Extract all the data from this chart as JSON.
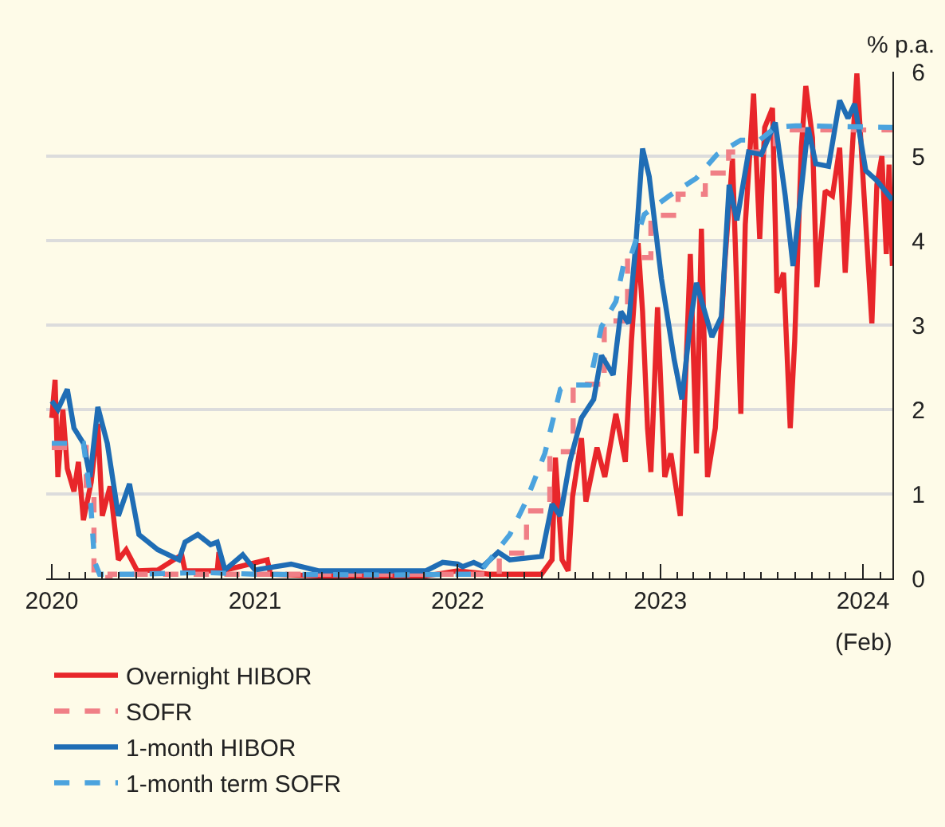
{
  "chart_data": {
    "type": "line",
    "ylabel": "% p.a.",
    "xlim": [
      "2019-12-22",
      "2024-02-23"
    ],
    "xticks": [
      {
        "value": "2020-01-01",
        "label": "2020"
      },
      {
        "value": "2021-01-01",
        "label": "2021"
      },
      {
        "value": "2022-01-01",
        "label": "2022"
      },
      {
        "value": "2023-01-01",
        "label": "2023"
      },
      {
        "value": "2024-01-01",
        "label": "2024"
      }
    ],
    "annotations": [
      "(Feb)"
    ],
    "ylim": [
      0,
      6
    ],
    "yticks": [
      0,
      1,
      2,
      3,
      4,
      5,
      6
    ],
    "grid": "y",
    "legend": "bottom",
    "line_style": "solid",
    "series": [
      {
        "name": "Overnight HIBOR",
        "color": "#e8262a",
        "x": [
          "2020-01-01",
          "2020-01-07",
          "2020-01-12",
          "2020-01-21",
          "2020-01-29",
          "2020-02-10",
          "2020-02-18",
          "2020-02-27",
          "2020-03-12",
          "2020-03-24",
          "2020-04-01",
          "2020-04-15",
          "2020-04-30",
          "2020-05-14",
          "2020-06-03",
          "2020-07-10",
          "2020-08-22",
          "2020-08-28",
          "2020-10-25",
          "2020-10-28",
          "2020-11-03",
          "2021-01-23",
          "2021-01-29",
          "2021-04-25",
          "2021-11-05",
          "2022-01-01",
          "2022-02-27",
          "2022-06-01",
          "2022-06-20",
          "2022-06-26",
          "2022-07-08",
          "2022-07-19",
          "2022-07-27",
          "2022-08-12",
          "2022-08-20",
          "2022-09-09",
          "2022-09-23",
          "2022-10-13",
          "2022-10-30",
          "2022-11-10",
          "2022-11-22",
          "2022-11-30",
          "2022-12-09",
          "2022-12-15",
          "2022-12-27",
          "2023-01-09",
          "2023-01-20",
          "2023-02-06",
          "2023-02-24",
          "2023-03-07",
          "2023-03-16",
          "2023-03-27",
          "2023-04-10",
          "2023-04-27",
          "2023-05-11",
          "2023-05-26",
          "2023-06-03",
          "2023-06-18",
          "2023-06-29",
          "2023-07-08",
          "2023-07-22",
          "2023-07-30",
          "2023-08-11",
          "2023-08-23",
          "2023-08-31",
          "2023-09-12",
          "2023-09-20",
          "2023-10-02",
          "2023-10-10",
          "2023-10-25",
          "2023-11-07",
          "2023-11-20",
          "2023-11-30",
          "2023-12-12",
          "2023-12-21",
          "2024-01-03",
          "2024-01-17",
          "2024-01-26",
          "2024-02-04",
          "2024-02-12",
          "2024-02-17",
          "2024-02-23"
        ],
        "values": [
          1.9,
          2.35,
          1.2,
          2.0,
          1.3,
          1.03,
          1.38,
          0.69,
          1.14,
          1.83,
          0.74,
          1.09,
          0.22,
          0.34,
          0.09,
          0.1,
          0.28,
          0.09,
          0.09,
          0.31,
          0.09,
          0.22,
          0.05,
          0.03,
          0.03,
          0.09,
          0.05,
          0.05,
          0.22,
          1.43,
          0.22,
          0.09,
          0.97,
          1.66,
          0.91,
          1.55,
          1.2,
          1.95,
          1.38,
          2.81,
          3.97,
          3.16,
          1.78,
          1.26,
          3.21,
          1.2,
          1.48,
          0.74,
          3.84,
          1.48,
          4.14,
          1.2,
          1.78,
          3.72,
          4.97,
          1.95,
          4.19,
          5.74,
          4.02,
          5.34,
          5.57,
          3.38,
          3.62,
          1.78,
          2.81,
          5.1,
          5.83,
          5.22,
          3.45,
          4.59,
          4.53,
          5.1,
          3.62,
          5.0,
          5.98,
          4.53,
          3.02,
          4.66,
          5.0,
          3.84,
          4.9,
          3.7
        ]
      },
      {
        "name": "SOFR",
        "color": "#f07f86",
        "type": "step",
        "line_style": "dashed",
        "x": [
          "2020-01-01",
          "2020-03-03",
          "2020-03-17",
          "2020-03-25",
          "2020-04-15",
          "2022-03-17",
          "2022-05-05",
          "2022-06-16",
          "2022-07-28",
          "2022-09-22",
          "2022-11-03",
          "2022-12-15",
          "2023-02-02",
          "2023-03-23",
          "2023-05-04",
          "2023-07-27",
          "2024-02-23"
        ],
        "values": [
          1.55,
          1.1,
          0.1,
          0.01,
          0.05,
          0.3,
          0.8,
          1.5,
          2.3,
          3.05,
          3.8,
          4.3,
          4.55,
          4.8,
          5.05,
          5.31,
          5.31
        ]
      },
      {
        "name": "1-month HIBOR",
        "color": "#1f6db5",
        "x": [
          "2020-01-01",
          "2020-01-12",
          "2020-01-29",
          "2020-02-10",
          "2020-02-27",
          "2020-03-10",
          "2020-03-24",
          "2020-04-10",
          "2020-04-30",
          "2020-05-20",
          "2020-06-06",
          "2020-07-10",
          "2020-08-17",
          "2020-08-28",
          "2020-09-20",
          "2020-10-13",
          "2020-10-25",
          "2020-11-08",
          "2020-12-10",
          "2021-01-01",
          "2021-03-07",
          "2021-04-25",
          "2021-07-30",
          "2021-11-05",
          "2021-12-05",
          "2022-01-01",
          "2022-01-10",
          "2022-01-30",
          "2022-02-15",
          "2022-03-15",
          "2022-04-05",
          "2022-06-01",
          "2022-06-20",
          "2022-07-05",
          "2022-07-22",
          "2022-08-12",
          "2022-09-03",
          "2022-09-17",
          "2022-10-08",
          "2022-10-22",
          "2022-11-05",
          "2022-11-18",
          "2022-11-30",
          "2022-12-12",
          "2023-01-03",
          "2023-01-26",
          "2023-02-09",
          "2023-02-24",
          "2023-03-07",
          "2023-04-04",
          "2023-04-21",
          "2023-05-05",
          "2023-05-19",
          "2023-06-09",
          "2023-07-02",
          "2023-07-27",
          "2023-08-14",
          "2023-08-28",
          "2023-09-24",
          "2023-10-08",
          "2023-10-31",
          "2023-11-20",
          "2023-12-05",
          "2023-12-17",
          "2024-01-06",
          "2024-01-26",
          "2024-02-23"
        ],
        "values": [
          2.1,
          2.0,
          2.24,
          1.78,
          1.6,
          1.2,
          2.03,
          1.6,
          0.74,
          1.12,
          0.52,
          0.34,
          0.22,
          0.43,
          0.52,
          0.4,
          0.43,
          0.1,
          0.28,
          0.1,
          0.17,
          0.09,
          0.09,
          0.09,
          0.19,
          0.17,
          0.14,
          0.19,
          0.14,
          0.31,
          0.22,
          0.26,
          0.88,
          0.74,
          1.38,
          1.9,
          2.12,
          2.64,
          2.41,
          3.16,
          3.02,
          3.97,
          5.09,
          4.76,
          3.55,
          2.59,
          2.12,
          3.03,
          3.5,
          2.86,
          3.1,
          4.66,
          4.24,
          5.05,
          5.02,
          5.4,
          4.53,
          3.7,
          5.34,
          4.91,
          4.88,
          5.66,
          5.45,
          5.62,
          4.83,
          4.71,
          4.48
        ]
      },
      {
        "name": "1-month term SOFR",
        "color": "#4ba3de",
        "line_style": "dashed",
        "x": [
          "2020-01-01",
          "2020-02-27",
          "2020-03-10",
          "2020-03-18",
          "2020-03-27",
          "2020-06-01",
          "2020-10-01",
          "2021-01-01",
          "2021-09-01",
          "2022-01-01",
          "2022-02-07",
          "2022-03-07",
          "2022-04-05",
          "2022-05-04",
          "2022-06-07",
          "2022-07-05",
          "2022-07-19",
          "2022-08-26",
          "2022-09-17",
          "2022-10-13",
          "2022-10-27",
          "2022-11-10",
          "2022-12-03",
          "2023-01-17",
          "2023-03-07",
          "2023-04-13",
          "2023-05-26",
          "2023-06-29",
          "2023-07-27",
          "2023-09-02",
          "2024-02-23"
        ],
        "values": [
          1.6,
          1.6,
          1.0,
          0.2,
          0.05,
          0.05,
          0.07,
          0.05,
          0.04,
          0.05,
          0.05,
          0.28,
          0.52,
          0.91,
          1.48,
          2.24,
          2.29,
          2.29,
          2.98,
          3.28,
          3.72,
          3.84,
          4.31,
          4.53,
          4.74,
          5.02,
          5.19,
          5.19,
          5.34,
          5.36,
          5.34
        ]
      }
    ]
  }
}
